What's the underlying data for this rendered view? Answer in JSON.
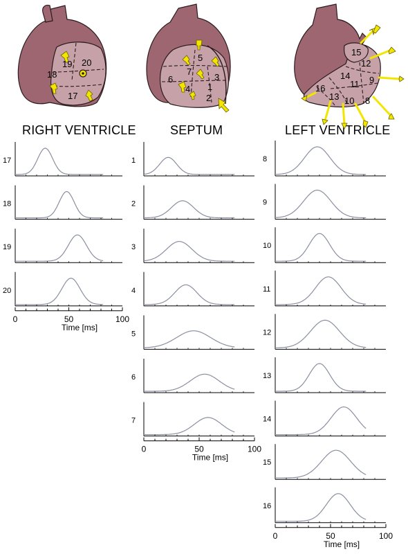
{
  "columns": {
    "right_ventricle": "RIGHT VENTRICLE",
    "septum": "SEPTUM",
    "left_ventricle": "LEFT VENTRICLE"
  },
  "colors": {
    "heart": "#9d6670",
    "heart_panel": "#c6a2a8",
    "heart_outline": "#2a1a1e",
    "arrow": "#f2e600",
    "trace": "#8a8fa0",
    "axis": "#000000"
  },
  "hearts": {
    "right_ventricle": {
      "segments": [
        "19",
        "20",
        "18",
        "17"
      ]
    },
    "septum": {
      "segments": [
        "5",
        "7",
        "3",
        "6",
        "4",
        "1",
        "2"
      ]
    },
    "left_ventricle": {
      "segments": [
        "15",
        "12",
        "14",
        "11",
        "9",
        "16",
        "13",
        "10",
        "8"
      ]
    }
  },
  "chart_data": [
    {
      "type": "line",
      "column": "right_ventricle",
      "xlabel": "Time [ms]",
      "xlim": [
        0,
        100
      ],
      "xticks": [
        0,
        50,
        100
      ],
      "series": [
        {
          "name": "17",
          "peak_time_ms": 28,
          "width_ms": 18,
          "amplitude": 1.0
        },
        {
          "name": "18",
          "peak_time_ms": 48,
          "width_ms": 18,
          "amplitude": 1.0
        },
        {
          "name": "19",
          "peak_time_ms": 58,
          "width_ms": 22,
          "amplitude": 1.0
        },
        {
          "name": "20",
          "peak_time_ms": 52,
          "width_ms": 22,
          "amplitude": 1.0
        }
      ]
    },
    {
      "type": "line",
      "column": "septum",
      "xlabel": "Time [ms]",
      "xlim": [
        0,
        100
      ],
      "xticks": [
        0,
        50,
        100
      ],
      "series": [
        {
          "name": "1",
          "peak_time_ms": 22,
          "width_ms": 20,
          "amplitude": 0.65
        },
        {
          "name": "2",
          "peak_time_ms": 35,
          "width_ms": 26,
          "amplitude": 0.65
        },
        {
          "name": "3",
          "peak_time_ms": 32,
          "width_ms": 30,
          "amplitude": 0.75
        },
        {
          "name": "4",
          "peak_time_ms": 38,
          "width_ms": 26,
          "amplitude": 0.75
        },
        {
          "name": "5",
          "peak_time_ms": 45,
          "width_ms": 40,
          "amplitude": 0.65
        },
        {
          "name": "6",
          "peak_time_ms": 55,
          "width_ms": 34,
          "amplitude": 0.65
        },
        {
          "name": "7",
          "peak_time_ms": 58,
          "width_ms": 32,
          "amplitude": 0.65
        }
      ]
    },
    {
      "type": "line",
      "column": "left_ventricle",
      "xlabel": "Time [ms]",
      "xlim": [
        0,
        100
      ],
      "xticks": [
        0,
        50,
        100
      ],
      "series": [
        {
          "name": "8",
          "peak_time_ms": 38,
          "width_ms": 30,
          "amplitude": 1.0
        },
        {
          "name": "9",
          "peak_time_ms": 38,
          "width_ms": 32,
          "amplitude": 1.0
        },
        {
          "name": "10",
          "peak_time_ms": 40,
          "width_ms": 24,
          "amplitude": 1.0
        },
        {
          "name": "11",
          "peak_time_ms": 48,
          "width_ms": 30,
          "amplitude": 1.0
        },
        {
          "name": "12",
          "peak_time_ms": 45,
          "width_ms": 34,
          "amplitude": 1.0
        },
        {
          "name": "13",
          "peak_time_ms": 40,
          "width_ms": 24,
          "amplitude": 1.0
        },
        {
          "name": "14",
          "peak_time_ms": 62,
          "width_ms": 30,
          "amplitude": 1.0
        },
        {
          "name": "15",
          "peak_time_ms": 55,
          "width_ms": 34,
          "amplitude": 1.0
        },
        {
          "name": "16",
          "peak_time_ms": 57,
          "width_ms": 28,
          "amplitude": 1.0
        }
      ]
    }
  ]
}
